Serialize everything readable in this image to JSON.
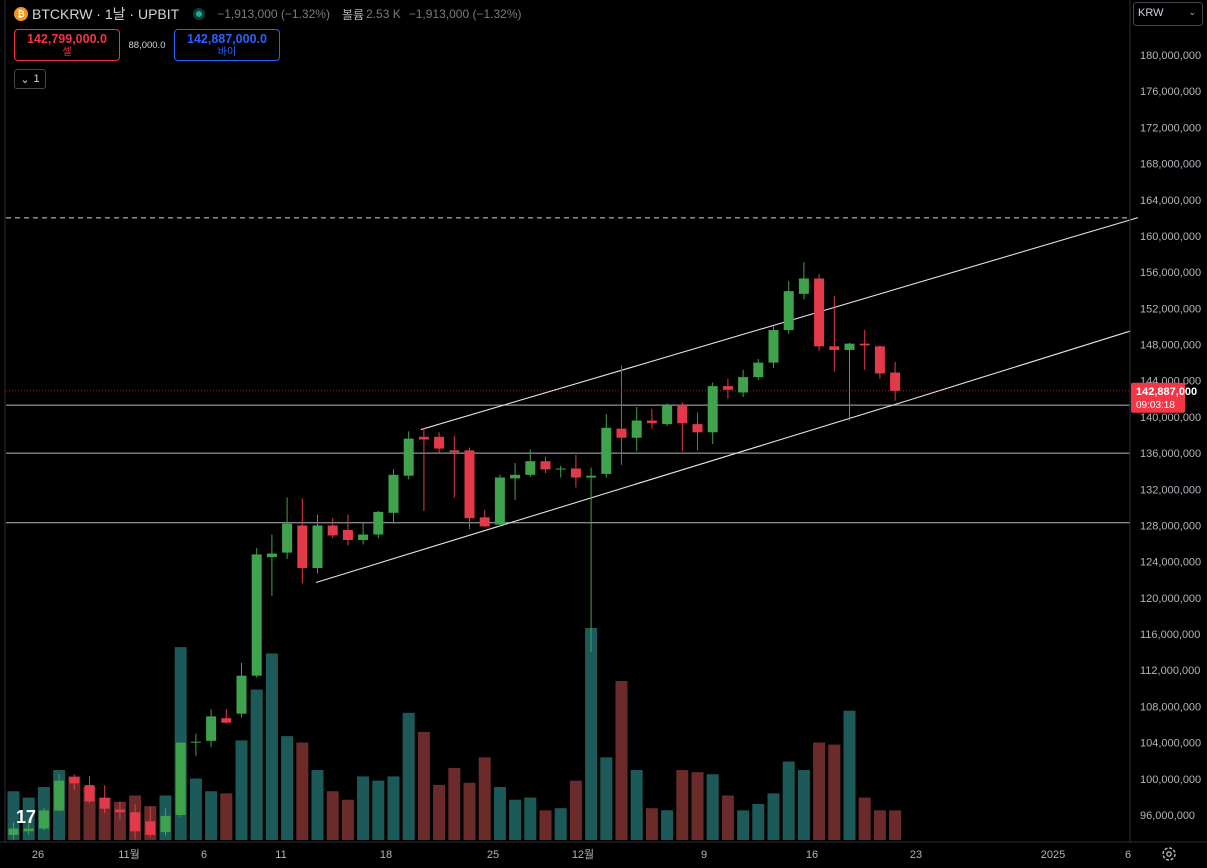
{
  "header": {
    "symbol": "BTCKRW · 1날 · UPBIT",
    "change": "−1,913,000 (−1.32%)",
    "volume_label": "볼륨",
    "volume_value": "2.53 K",
    "volume_change": "−1,913,000 (−1.32%)"
  },
  "trade": {
    "sell_price": "142,799,000.0",
    "sell_label": "셀",
    "spread": "88,000.0",
    "buy_price": "142,887,000.0",
    "buy_label": "바이"
  },
  "collapse_label": "1",
  "currency": "KRW",
  "colors": {
    "up": "#3fa34d",
    "down": "#e23a4a",
    "vol_up": "#1c5a5a",
    "vol_down": "#6b2b2b",
    "grid_line": "#b2b5be",
    "price_tag": "#f23645"
  },
  "icons": [
    "bitcoin-icon",
    "market-open-icon",
    "chevron-down-icon",
    "tradingview-logo-icon",
    "gear-icon"
  ],
  "chart_data": {
    "type": "candlestick",
    "y_axis_ticks": [
      "96,000,000",
      "100,000,000",
      "104,000,000",
      "108,000,000",
      "112,000,000",
      "116,000,000",
      "120,000,000",
      "124,000,000",
      "128,000,000",
      "132,000,000",
      "136,000,000",
      "140,000,000",
      "144,000,000",
      "148,000,000",
      "152,000,000",
      "156,000,000",
      "160,000,000",
      "164,000,000",
      "168,000,000",
      "172,000,000",
      "176,000,000",
      "180,000,000"
    ],
    "x_axis_ticks": [
      "26",
      "11월",
      "6",
      "11",
      "18",
      "25",
      "12월",
      "9",
      "16",
      "23",
      "2025",
      "6"
    ],
    "ylim": [
      92000000,
      183000000
    ],
    "last_price": "142,887,000",
    "countdown": "09:03:18",
    "horizontal_levels": [
      136000000,
      128300000,
      141300000
    ],
    "dashed_level": 162000000,
    "candles": [
      {
        "o": 93800000,
        "h": 95200000,
        "l": 93300000,
        "c": 94500000
      },
      {
        "o": 94200000,
        "h": 95500000,
        "l": 93800000,
        "c": 94500000
      },
      {
        "o": 94500000,
        "h": 96800000,
        "l": 94300000,
        "c": 96500000
      },
      {
        "o": 96500000,
        "h": 100500000,
        "l": 96400000,
        "c": 99800000
      },
      {
        "o": 100200000,
        "h": 100500000,
        "l": 98800000,
        "c": 99500000
      },
      {
        "o": 99300000,
        "h": 100300000,
        "l": 97300000,
        "c": 97500000
      },
      {
        "o": 97900000,
        "h": 99300000,
        "l": 96200000,
        "c": 96700000
      },
      {
        "o": 96600000,
        "h": 97500000,
        "l": 95500000,
        "c": 96300000
      },
      {
        "o": 96300000,
        "h": 97200000,
        "l": 93300000,
        "c": 94200000
      },
      {
        "o": 95300000,
        "h": 96900000,
        "l": 93500000,
        "c": 93800000
      },
      {
        "o": 94100000,
        "h": 96800000,
        "l": 93700000,
        "c": 95900000
      },
      {
        "o": 96000000,
        "h": 104000000,
        "l": 95800000,
        "c": 104000000
      },
      {
        "o": 104000000,
        "h": 105000000,
        "l": 102500000,
        "c": 104100000
      },
      {
        "o": 104200000,
        "h": 107700000,
        "l": 103500000,
        "c": 106900000
      },
      {
        "o": 106700000,
        "h": 107700000,
        "l": 106100000,
        "c": 106200000
      },
      {
        "o": 107200000,
        "h": 112800000,
        "l": 106800000,
        "c": 111400000
      },
      {
        "o": 111400000,
        "h": 125500000,
        "l": 111200000,
        "c": 124800000
      },
      {
        "o": 124500000,
        "h": 127000000,
        "l": 120200000,
        "c": 124900000
      },
      {
        "o": 125000000,
        "h": 131100000,
        "l": 124300000,
        "c": 128200000
      },
      {
        "o": 128000000,
        "h": 131000000,
        "l": 121600000,
        "c": 123300000
      },
      {
        "o": 123300000,
        "h": 129200000,
        "l": 122700000,
        "c": 128000000
      },
      {
        "o": 128000000,
        "h": 128800000,
        "l": 126600000,
        "c": 126900000
      },
      {
        "o": 127500000,
        "h": 129200000,
        "l": 125800000,
        "c": 126400000
      },
      {
        "o": 126400000,
        "h": 128400000,
        "l": 125900000,
        "c": 127000000
      },
      {
        "o": 127000000,
        "h": 129600000,
        "l": 126600000,
        "c": 129500000
      },
      {
        "o": 129400000,
        "h": 134200000,
        "l": 128200000,
        "c": 133600000
      },
      {
        "o": 133500000,
        "h": 138400000,
        "l": 133100000,
        "c": 137600000
      },
      {
        "o": 137800000,
        "h": 138800000,
        "l": 129600000,
        "c": 137500000
      },
      {
        "o": 137800000,
        "h": 138300000,
        "l": 135900000,
        "c": 136500000
      },
      {
        "o": 136300000,
        "h": 137900000,
        "l": 131100000,
        "c": 136100000
      },
      {
        "o": 136300000,
        "h": 136600000,
        "l": 127600000,
        "c": 128800000
      },
      {
        "o": 128900000,
        "h": 129700000,
        "l": 127800000,
        "c": 127900000
      },
      {
        "o": 128100000,
        "h": 133600000,
        "l": 127900000,
        "c": 133300000
      },
      {
        "o": 133200000,
        "h": 134900000,
        "l": 130800000,
        "c": 133600000
      },
      {
        "o": 133600000,
        "h": 136400000,
        "l": 133400000,
        "c": 135100000
      },
      {
        "o": 135100000,
        "h": 135600000,
        "l": 133800000,
        "c": 134200000
      },
      {
        "o": 134200000,
        "h": 134600000,
        "l": 133300000,
        "c": 134300000
      },
      {
        "o": 134300000,
        "h": 135800000,
        "l": 132200000,
        "c": 133300000
      },
      {
        "o": 133300000,
        "h": 134400000,
        "l": 114000000,
        "c": 133500000
      },
      {
        "o": 133700000,
        "h": 140300000,
        "l": 133300000,
        "c": 138800000
      },
      {
        "o": 138700000,
        "h": 145700000,
        "l": 134700000,
        "c": 137700000
      },
      {
        "o": 137700000,
        "h": 141100000,
        "l": 136200000,
        "c": 139600000
      },
      {
        "o": 139600000,
        "h": 140900000,
        "l": 138700000,
        "c": 139300000
      },
      {
        "o": 139200000,
        "h": 141500000,
        "l": 139000000,
        "c": 141300000
      },
      {
        "o": 141200000,
        "h": 141600000,
        "l": 136200000,
        "c": 139300000
      },
      {
        "o": 139200000,
        "h": 140500000,
        "l": 136300000,
        "c": 138300000
      },
      {
        "o": 138300000,
        "h": 143800000,
        "l": 137000000,
        "c": 143400000
      },
      {
        "o": 143400000,
        "h": 144200000,
        "l": 142000000,
        "c": 143000000
      },
      {
        "o": 142700000,
        "h": 145200000,
        "l": 142200000,
        "c": 144400000
      },
      {
        "o": 144400000,
        "h": 146400000,
        "l": 144100000,
        "c": 146000000
      },
      {
        "o": 146000000,
        "h": 150000000,
        "l": 145400000,
        "c": 149600000
      },
      {
        "o": 149600000,
        "h": 155000000,
        "l": 149200000,
        "c": 153900000
      },
      {
        "o": 153600000,
        "h": 157100000,
        "l": 153000000,
        "c": 155300000
      },
      {
        "o": 155300000,
        "h": 155800000,
        "l": 147300000,
        "c": 147800000
      },
      {
        "o": 147800000,
        "h": 153400000,
        "l": 145000000,
        "c": 147400000
      },
      {
        "o": 147400000,
        "h": 148200000,
        "l": 139600000,
        "c": 148100000
      },
      {
        "o": 148100000,
        "h": 149600000,
        "l": 145200000,
        "c": 147900000
      },
      {
        "o": 147800000,
        "h": 147900000,
        "l": 144200000,
        "c": 144800000
      },
      {
        "o": 144900000,
        "h": 146100000,
        "l": 141800000,
        "c": 142887000
      }
    ],
    "volumes": [
      0.23,
      0.2,
      0.25,
      0.33,
      0.3,
      0.25,
      0.2,
      0.18,
      0.21,
      0.16,
      0.21,
      0.91,
      0.29,
      0.23,
      0.22,
      0.47,
      0.71,
      0.88,
      0.49,
      0.46,
      0.33,
      0.23,
      0.19,
      0.3,
      0.28,
      0.3,
      0.6,
      0.51,
      0.26,
      0.34,
      0.27,
      0.39,
      0.25,
      0.19,
      0.2,
      0.14,
      0.15,
      0.28,
      1.0,
      0.39,
      0.75,
      0.33,
      0.15,
      0.14,
      0.33,
      0.32,
      0.31,
      0.21,
      0.14,
      0.17,
      0.22,
      0.37,
      0.33,
      0.46,
      0.45,
      0.61,
      0.2,
      0.14,
      0.14
    ]
  }
}
